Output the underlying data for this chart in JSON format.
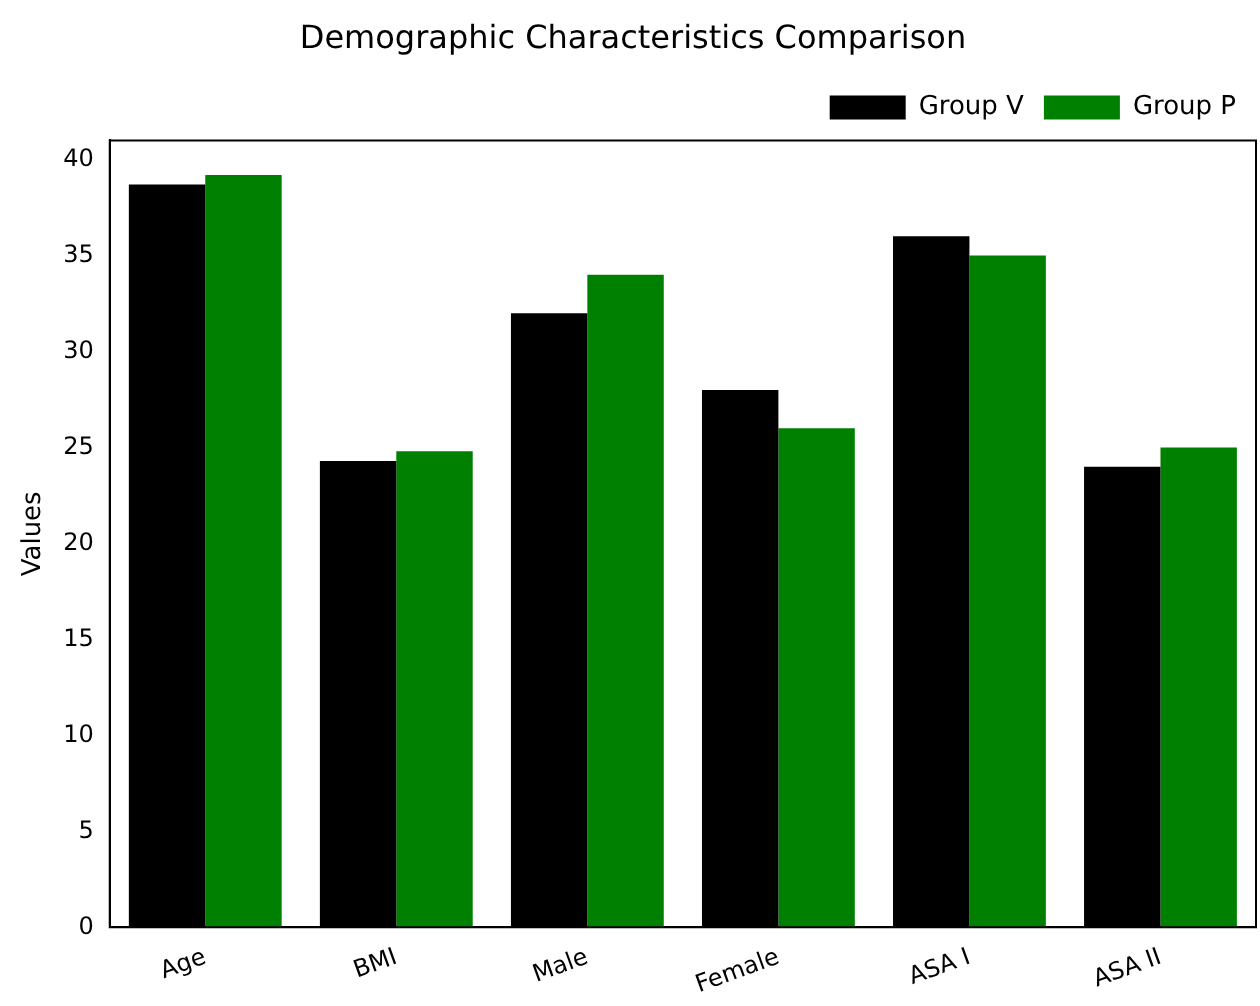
{
  "chart_data": {
    "type": "bar",
    "title": "Demographic Characteristics Comparison",
    "ylabel": "Values",
    "categories": [
      "Age",
      "BMI",
      "Male",
      "Female",
      "ASA I",
      "ASA II"
    ],
    "series": [
      {
        "name": "Group V",
        "color": "#000000",
        "values": [
          38.7,
          24.3,
          32,
          28,
          36,
          24
        ]
      },
      {
        "name": "Group P",
        "color": "#008000",
        "values": [
          39.2,
          24.8,
          34,
          26,
          35,
          25
        ]
      }
    ],
    "ylim": [
      0,
      41
    ],
    "yticks": [
      0,
      5,
      10,
      15,
      20,
      25,
      30,
      35,
      40
    ],
    "grid": false,
    "legend": "top right"
  }
}
